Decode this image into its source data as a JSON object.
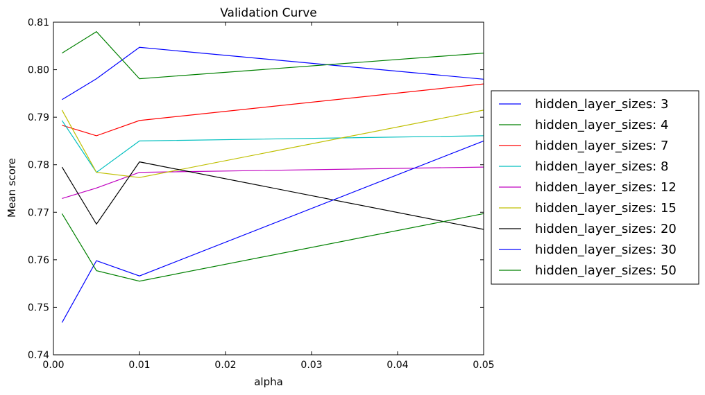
{
  "chart_data": {
    "type": "line",
    "title": "Validation Curve",
    "xlabel": "alpha",
    "ylabel": "Mean score",
    "xlim": [
      0.0,
      0.05
    ],
    "ylim": [
      0.74,
      0.81
    ],
    "xticks": [
      "0.00",
      "0.01",
      "0.02",
      "0.03",
      "0.04",
      "0.05"
    ],
    "yticks": [
      "0.74",
      "0.75",
      "0.76",
      "0.77",
      "0.78",
      "0.79",
      "0.80",
      "0.81"
    ],
    "grid": false,
    "legend_position": "outside-right",
    "x": [
      0.001,
      0.005,
      0.01,
      0.05
    ],
    "series": [
      {
        "name": "hidden_layer_sizes: 3",
        "color": "#0000ff",
        "values": [
          0.7937,
          0.7981,
          0.8047,
          0.798
        ]
      },
      {
        "name": "hidden_layer_sizes: 4",
        "color": "#008000",
        "values": [
          0.8035,
          0.808,
          0.7981,
          0.8035
        ]
      },
      {
        "name": "hidden_layer_sizes: 7",
        "color": "#ff0000",
        "values": [
          0.7883,
          0.7861,
          0.7893,
          0.797
        ]
      },
      {
        "name": "hidden_layer_sizes: 8",
        "color": "#00bfbf",
        "values": [
          0.7893,
          0.7784,
          0.785,
          0.7861
        ]
      },
      {
        "name": "hidden_layer_sizes: 12",
        "color": "#bf00bf",
        "values": [
          0.7729,
          0.7751,
          0.7784,
          0.7795
        ]
      },
      {
        "name": "hidden_layer_sizes: 15",
        "color": "#bfbf00",
        "values": [
          0.7915,
          0.7784,
          0.7773,
          0.7915
        ]
      },
      {
        "name": "hidden_layer_sizes: 20",
        "color": "#000000",
        "values": [
          0.7795,
          0.7675,
          0.7806,
          0.7664
        ]
      },
      {
        "name": "hidden_layer_sizes: 30",
        "color": "#0000ff",
        "values": [
          0.7468,
          0.7598,
          0.7566,
          0.785
        ]
      },
      {
        "name": "hidden_layer_sizes: 50",
        "color": "#008000",
        "values": [
          0.7697,
          0.7577,
          0.7555,
          0.7697
        ]
      }
    ]
  }
}
